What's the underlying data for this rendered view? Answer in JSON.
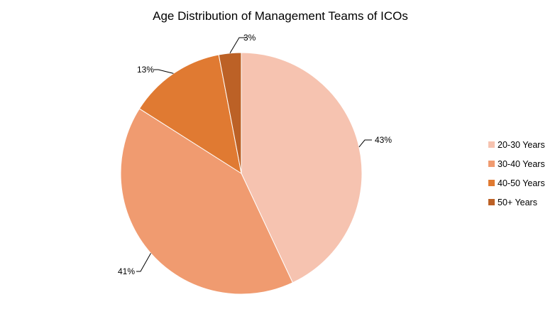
{
  "chart_data": {
    "type": "pie",
    "title": "Age Distribution of Management Teams of ICOs",
    "categories": [
      "20-30 Years",
      "30-40 Years",
      "40-50 Years",
      "50+ Years"
    ],
    "values": [
      43,
      41,
      13,
      3
    ],
    "value_labels": [
      "43%",
      "41%",
      "13%",
      "3%"
    ],
    "colors": [
      "#F6C3B0",
      "#F09B70",
      "#E07A32",
      "#BC6126"
    ],
    "start_angle_deg": 0,
    "direction": "clockwise",
    "legend": {
      "position": "right",
      "entries": [
        "20-30 Years",
        "30-40 Years",
        "40-50 Years",
        "50+ Years"
      ]
    }
  }
}
